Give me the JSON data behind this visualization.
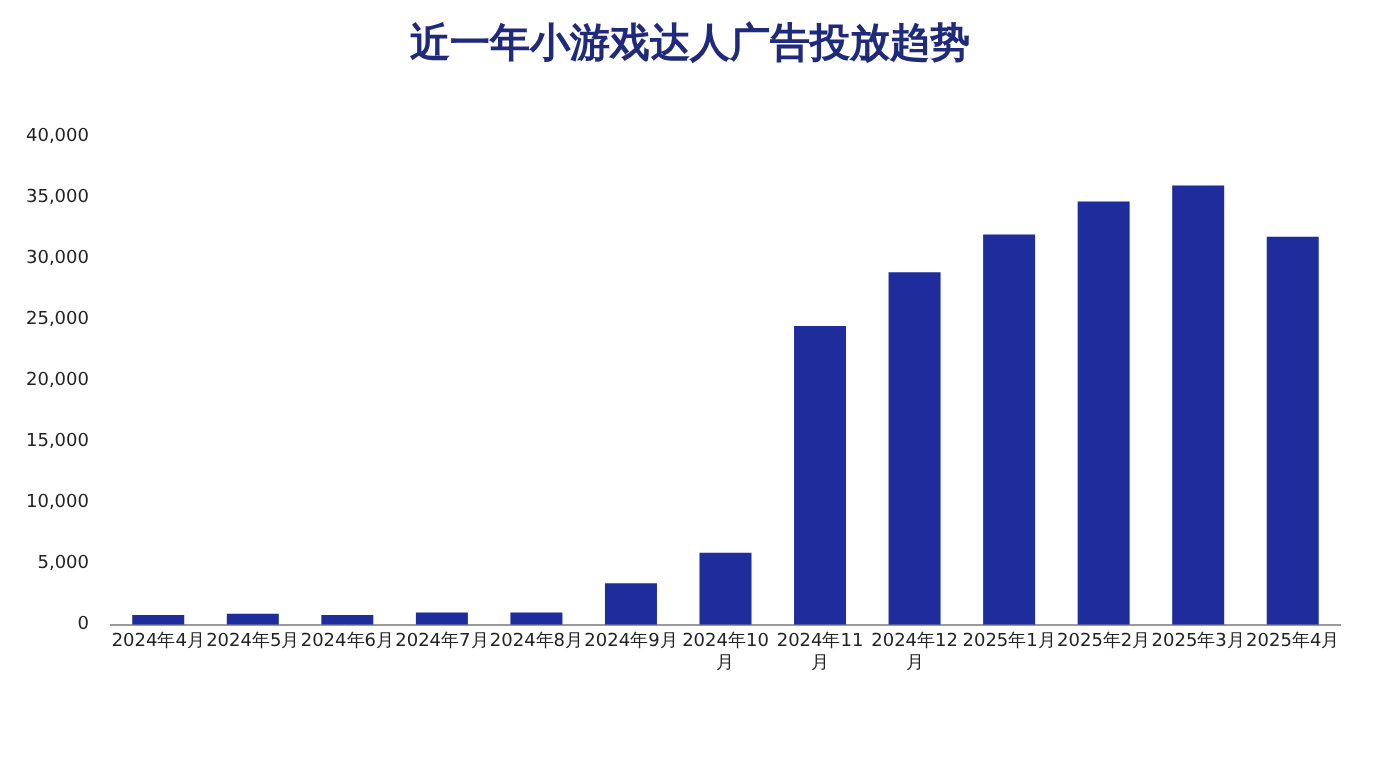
{
  "chart_data": {
    "type": "bar",
    "title": "近一年小游戏达人广告投放趋势",
    "categories": [
      "2024年4月",
      "2024年5月",
      "2024年6月",
      "2024年7月",
      "2024年8月",
      "2024年9月",
      "2024年10月",
      "2024年11月",
      "2024年12月",
      "2025年1月",
      "2025年2月",
      "2025年3月",
      "2025年4月"
    ],
    "values": [
      800,
      900,
      800,
      1000,
      1000,
      3400,
      5900,
      24500,
      28900,
      32000,
      34700,
      36000,
      31800
    ],
    "color": "#1f2c9c",
    "ylim": [
      0,
      40000
    ],
    "yticks": [
      0,
      {
        "value": 5000,
        "label": "5,000"
      },
      {
        "value": 10000,
        "label": "10,000"
      },
      {
        "value": 15000,
        "label": "15,000"
      },
      {
        "value": 20000,
        "label": "20,000"
      },
      {
        "value": 25000,
        "label": "25,000"
      },
      {
        "value": 30000,
        "label": "30,000"
      },
      {
        "value": 35000,
        "label": "35,000"
      },
      {
        "value": 40000,
        "label": "40,000"
      }
    ],
    "grid": false,
    "legend": false
  }
}
